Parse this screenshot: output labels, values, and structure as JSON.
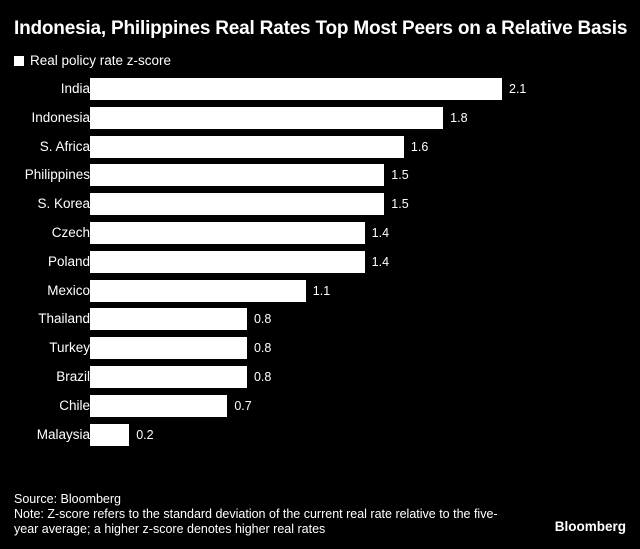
{
  "chart_data": {
    "type": "bar",
    "orientation": "horizontal",
    "title": "Indonesia, Philippines Real Rates Top Most Peers on a Relative Basis",
    "legend": [
      "Real policy rate z-score"
    ],
    "categories": [
      "India",
      "Indonesia",
      "S. Africa",
      "Philippines",
      "S. Korea",
      "Czech",
      "Poland",
      "Mexico",
      "Thailand",
      "Turkey",
      "Brazil",
      "Chile",
      "Malaysia"
    ],
    "series": [
      {
        "name": "Real policy rate z-score",
        "values": [
          2.1,
          1.8,
          1.6,
          1.5,
          1.5,
          1.4,
          1.4,
          1.1,
          0.8,
          0.8,
          0.8,
          0.7,
          0.2
        ]
      }
    ],
    "value_labels": [
      "2.1",
      "1.8",
      "1.6",
      "1.5",
      "1.5",
      "1.4",
      "1.4",
      "1.1",
      "0.8",
      "0.8",
      "0.8",
      "0.7",
      "0.2"
    ],
    "xlim": [
      0,
      2.1
    ],
    "grid": false,
    "colors": {
      "bar": "#ffffff",
      "background": "#000000",
      "text": "#ffffff"
    }
  },
  "footer": {
    "source": "Source: Bloomberg",
    "note": "Note: Z-score refers to the standard deviation of the current real rate relative to the five-year average; a higher z-score denotes higher real rates"
  },
  "brand": "Bloomberg"
}
